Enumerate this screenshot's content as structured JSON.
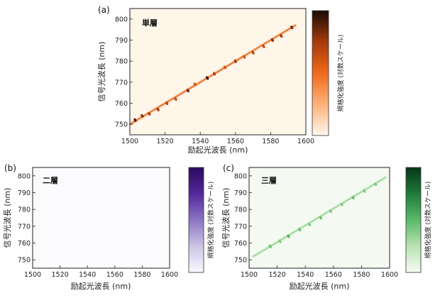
{
  "chart_data": [
    {
      "panel": "(a)",
      "type": "heatmap",
      "inset_label": "単層",
      "xlabel": "励起光波長 (nm)",
      "ylabel": "信号光波長 (nm)",
      "xlim": [
        1500,
        1600
      ],
      "ylim": [
        745,
        805
      ],
      "xticks": [
        1500,
        1520,
        1540,
        1560,
        1580,
        1600
      ],
      "yticks": [
        750,
        760,
        770,
        780,
        790,
        800
      ],
      "colorbar_label": "規格化強度 (対数スケール)",
      "colormap": [
        "#fff7ee",
        "#fdb27a",
        "#ef6a1c",
        "#a43a0b",
        "#1a0a05"
      ],
      "background": "#fff6ea",
      "band": {
        "x_start": 1500,
        "x_end": 1594,
        "y_start": 750,
        "y_end": 797,
        "intensity": 0.55
      },
      "spots": [
        [
          1503,
          752,
          0.9
        ],
        [
          1507,
          754,
          0.8
        ],
        [
          1511,
          755,
          0.7
        ],
        [
          1516,
          757,
          0.75
        ],
        [
          1521,
          760,
          0.7
        ],
        [
          1526,
          762,
          0.65
        ],
        [
          1533,
          766,
          0.85
        ],
        [
          1537,
          769,
          0.6
        ],
        [
          1544,
          772,
          0.95
        ],
        [
          1548,
          774,
          0.7
        ],
        [
          1554,
          777,
          0.6
        ],
        [
          1560,
          780,
          0.75
        ],
        [
          1565,
          782,
          0.6
        ],
        [
          1570,
          784,
          0.7
        ],
        [
          1576,
          787,
          0.65
        ],
        [
          1581,
          790,
          0.8
        ],
        [
          1586,
          792,
          0.75
        ],
        [
          1592,
          796,
          0.85
        ]
      ]
    },
    {
      "panel": "(b)",
      "type": "heatmap",
      "inset_label": "二層",
      "xlabel": "励起光波長 (nm)",
      "ylabel": "信号光波長 (nm)",
      "xlim": [
        1500,
        1600
      ],
      "ylim": [
        745,
        805
      ],
      "xticks": [
        1500,
        1520,
        1540,
        1560,
        1580,
        1600
      ],
      "yticks": [
        750,
        760,
        770,
        780,
        790,
        800
      ],
      "colorbar_label": "規格化強度 (対数スケール)",
      "colormap": [
        "#fbfaff",
        "#ccc4e6",
        "#8b75c2",
        "#54289a",
        "#2a0a5e"
      ],
      "background": "#fbfbfe",
      "band": null,
      "spots": []
    },
    {
      "panel": "(c)",
      "type": "heatmap",
      "inset_label": "三層",
      "xlabel": "励起光波長 (nm)",
      "ylabel": "信号光波長 (nm)",
      "xlim": [
        1500,
        1600
      ],
      "ylim": [
        745,
        805
      ],
      "xticks": [
        1500,
        1520,
        1540,
        1560,
        1580,
        1600
      ],
      "yticks": [
        750,
        760,
        770,
        780,
        790,
        800
      ],
      "colorbar_label": "規格化強度 (対数スケール)",
      "colormap": [
        "#f6fbf3",
        "#b9e3b2",
        "#5ab869",
        "#1e7b3a",
        "#06361a"
      ],
      "background": "#f4faf1",
      "band": {
        "x_start": 1503,
        "x_end": 1597,
        "y_start": 752,
        "y_end": 799,
        "intensity": 0.35
      },
      "spots": [
        [
          1515,
          758,
          0.45
        ],
        [
          1522,
          761,
          0.4
        ],
        [
          1528,
          764,
          0.5
        ],
        [
          1536,
          768,
          0.45
        ],
        [
          1543,
          771,
          0.4
        ],
        [
          1551,
          775,
          0.45
        ],
        [
          1558,
          779,
          0.4
        ],
        [
          1566,
          783,
          0.4
        ],
        [
          1574,
          787,
          0.45
        ],
        [
          1582,
          791,
          0.4
        ],
        [
          1590,
          795,
          0.4
        ]
      ]
    }
  ]
}
